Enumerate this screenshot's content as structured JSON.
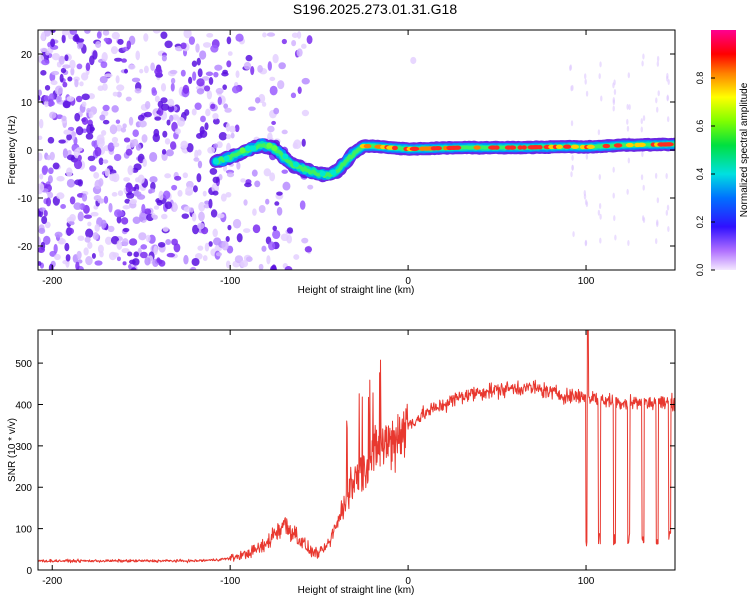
{
  "title": "S196.2025.273.01.31.G18",
  "colors": {
    "snr_line": "#e8382f",
    "ridge": "#e8382f",
    "background": "#ffffff"
  },
  "chart_data": [
    {
      "type": "heatmap",
      "xlabel": "Height of straight line (km)",
      "ylabel": "Frequency (Hz)",
      "xlim": [
        -208,
        150
      ],
      "ylim": [
        -25,
        25
      ],
      "xticks": [
        -200,
        -100,
        0,
        100
      ],
      "yticks": [
        -20,
        -10,
        0,
        10,
        20
      ],
      "colorbar": {
        "label": "Normalized spectral amplitude",
        "range": [
          0,
          1
        ],
        "ticks": [
          "0.0",
          "0.2",
          "0.4",
          "0.6",
          "0.8"
        ],
        "tick_values": [
          0.0,
          0.2,
          0.4,
          0.6,
          0.8
        ],
        "colormap": "rainbow-reverse"
      },
      "ridge": {
        "x": [
          -108,
          -100,
          -90,
          -82,
          -76,
          -70,
          -65,
          -60,
          -55,
          -50,
          -45,
          -40,
          -35,
          -30,
          -25,
          -20,
          -10,
          0,
          10,
          30,
          60,
          90,
          100,
          120,
          150
        ],
        "y": [
          -2.5,
          -1.5,
          0,
          1.0,
          0.5,
          -1.5,
          -3.0,
          -3.8,
          -4.5,
          -5.0,
          -5.2,
          -4.3,
          -2.5,
          -0.5,
          0.8,
          0.8,
          0.5,
          0.2,
          0.3,
          0.5,
          0.5,
          0.7,
          0.6,
          1.0,
          1.2
        ]
      }
    },
    {
      "type": "line",
      "xlabel": "Height of straight line (km)",
      "ylabel": "SNR (10 * v/v)",
      "xlim": [
        -208,
        150
      ],
      "ylim": [
        0,
        580
      ],
      "xticks": [
        -200,
        -100,
        0,
        100
      ],
      "yticks": [
        0,
        100,
        200,
        300,
        400,
        500
      ],
      "series": [
        {
          "x": [
            -208,
            -180,
            -150,
            -120,
            -110,
            -100,
            -90,
            -80,
            -75,
            -70,
            -65,
            -60,
            -55,
            -50,
            -45,
            -40,
            -35,
            -30,
            -25,
            -20,
            -15,
            -10,
            -5,
            0,
            10,
            20,
            30,
            40,
            50,
            60,
            70,
            80,
            90,
            100,
            110,
            120,
            130,
            140,
            150
          ],
          "values": [
            22,
            22,
            22,
            22,
            24,
            28,
            40,
            60,
            90,
            110,
            95,
            70,
            45,
            40,
            60,
            110,
            170,
            220,
            240,
            270,
            300,
            310,
            330,
            350,
            380,
            400,
            420,
            430,
            435,
            440,
            440,
            430,
            420,
            420,
            410,
            405,
            405,
            405,
            405
          ]
        }
      ],
      "dropouts": [
        {
          "x": 100.5,
          "min": 50
        },
        {
          "x": 107.5,
          "min": 60
        },
        {
          "x": 116,
          "min": 60
        },
        {
          "x": 124,
          "min": 60
        },
        {
          "x": 132,
          "min": 60
        },
        {
          "x": 140,
          "min": 60
        },
        {
          "x": 147,
          "min": 65
        }
      ],
      "spike": {
        "x": 101,
        "value": 580
      }
    }
  ]
}
